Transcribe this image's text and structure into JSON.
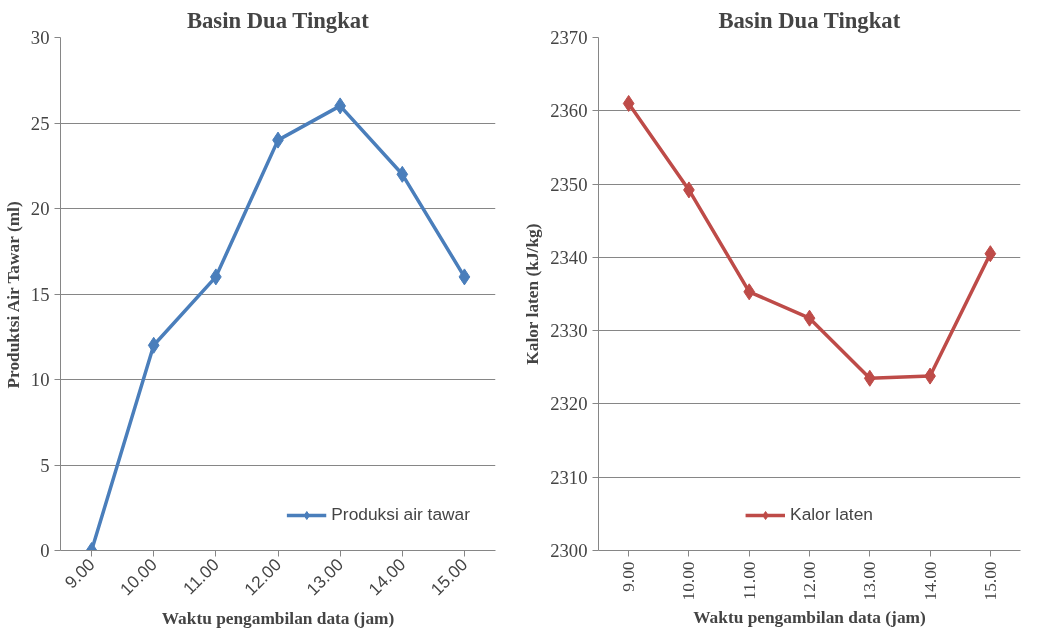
{
  "chart_data": [
    {
      "type": "line",
      "title": "Basin Dua Tingkat",
      "xlabel": "Waktu pengambilan data (jam)",
      "ylabel": "Produktsi Air Tawar (ml)",
      "categories": [
        "9.00",
        "10.00",
        "11.00",
        "12.00",
        "13.00",
        "14.00",
        "15.00"
      ],
      "series": [
        {
          "name": "Produksi air tawar",
          "color": "#4a7ebb",
          "values": [
            0,
            12,
            16,
            24,
            26,
            22,
            16
          ]
        }
      ],
      "ylim": [
        0,
        30
      ],
      "yticks": [
        0,
        5,
        10,
        15,
        20,
        25,
        30
      ],
      "grid": "y",
      "legend": "bottom right",
      "marker": "diamond",
      "line_style": "solid"
    },
    {
      "type": "line",
      "title": "Basin Dua Tingkat",
      "xlabel": "Waktu pengambilan data (jam)",
      "ylabel": "Kalor laten (kJ/kg)",
      "categories": [
        "9.00",
        "10.00",
        "11.00",
        "12.00",
        "13.00",
        "14.00",
        "15.00"
      ],
      "series": [
        {
          "name": "Kalor laten",
          "color": "#be4b48",
          "values": [
            2361,
            2349.2,
            2335.3,
            2331.7,
            2323.5,
            2323.8,
            2340.5
          ]
        }
      ],
      "ylim": [
        2300,
        2370
      ],
      "yticks": [
        2300,
        2310,
        2320,
        2330,
        2340,
        2350,
        2360,
        2370
      ],
      "grid": "y",
      "legend": "bottom",
      "marker": "diamond",
      "line_style": "solid"
    }
  ]
}
